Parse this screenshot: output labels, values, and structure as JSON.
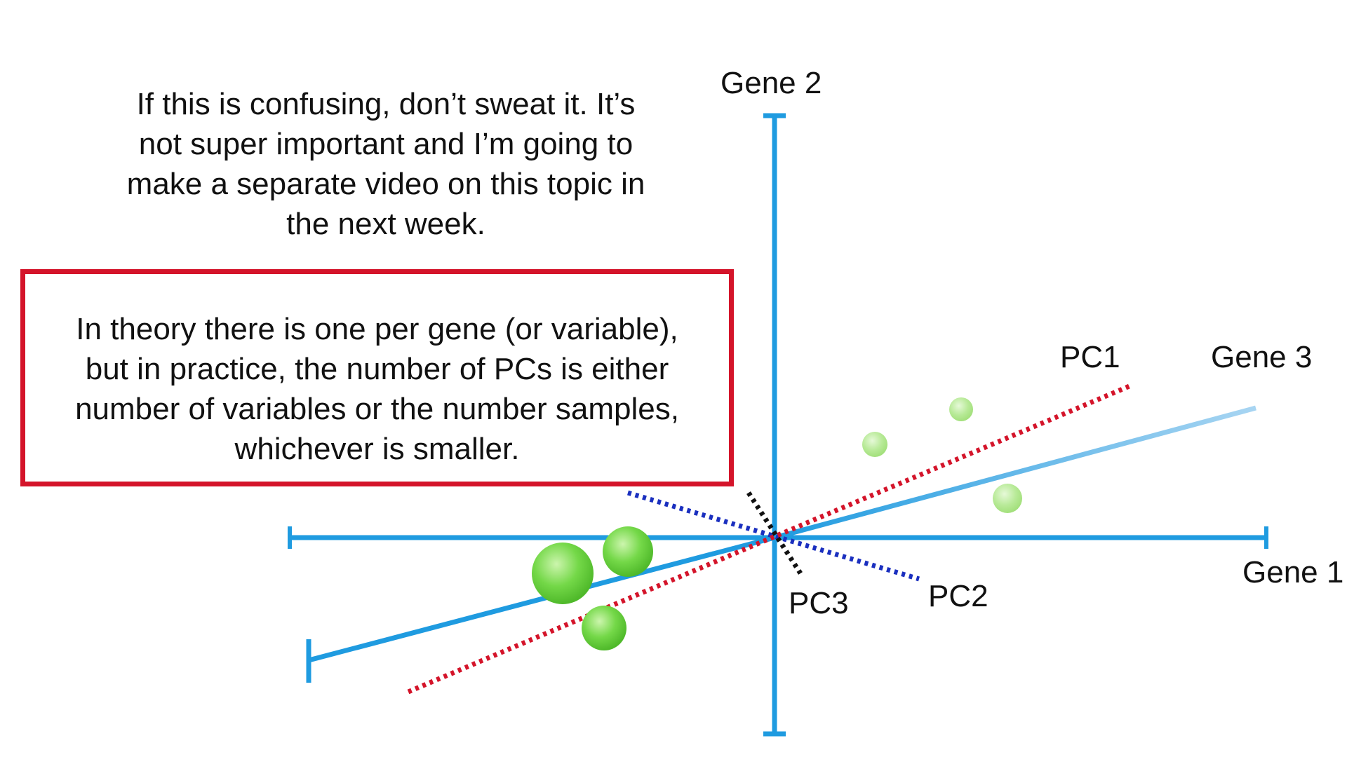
{
  "note": {
    "lines": [
      "If this is confusing, don’t sweat it. It’s",
      "not super important and I’m going to",
      "make a separate video on this topic in",
      "the next week."
    ]
  },
  "callout": {
    "lines": [
      "In theory there is one per gene (or variable),",
      "but in practice, the number of PCs is either",
      "number of variables or the number samples,",
      "whichever is smaller."
    ],
    "border_color": "#d4142a"
  },
  "axes": {
    "gene1": "Gene 1",
    "gene2": "Gene 2",
    "gene3": "Gene 3",
    "color": "#1f9be0"
  },
  "components": {
    "pc1": {
      "label": "PC1",
      "color": "#d4142a",
      "style": "dotted"
    },
    "pc2": {
      "label": "PC2",
      "color": "#1a2fbf",
      "style": "dotted"
    },
    "pc3": {
      "label": "PC3",
      "color": "#111111",
      "style": "dotted"
    }
  },
  "samples": {
    "color": "#6ad43a",
    "count": 6
  }
}
